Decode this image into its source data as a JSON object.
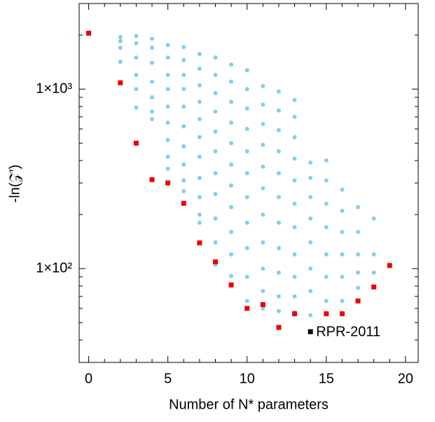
{
  "chart_data": {
    "type": "scatter",
    "xlabel": "Number of N* parameters",
    "ylabel": "-ln(𝒵′)",
    "xlim": [
      -0.6,
      20.8
    ],
    "xticks": [
      0,
      5,
      10,
      15,
      20
    ],
    "xminor_ticks": [
      1,
      2,
      3,
      4,
      6,
      7,
      8,
      9,
      11,
      12,
      13,
      14,
      16,
      17,
      18,
      19
    ],
    "ylim": [
      30,
      3000
    ],
    "log_y": true,
    "yticks": [
      {
        "value": 100,
        "label": "1×10²"
      },
      {
        "value": 1000,
        "label": "1×10³"
      }
    ],
    "yminor_ticks": [
      40,
      50,
      60,
      70,
      80,
      90,
      200,
      300,
      400,
      500,
      600,
      700,
      800,
      900,
      2000
    ],
    "series": [
      {
        "color": "#87ceeb",
        "marker": "circle",
        "x": [
          2,
          2,
          2,
          2,
          3,
          3,
          3,
          3,
          3,
          3,
          4,
          4,
          4,
          4,
          4,
          4,
          4,
          5,
          5,
          5,
          5,
          5,
          5,
          5,
          5,
          5,
          6,
          6,
          6,
          6,
          6,
          6,
          6,
          6,
          6,
          6,
          7,
          7,
          7,
          7,
          7,
          7,
          7,
          7,
          7,
          7,
          7,
          8,
          8,
          8,
          8,
          8,
          8,
          8,
          8,
          8,
          8,
          8,
          9,
          9,
          9,
          9,
          9,
          9,
          9,
          9,
          9,
          9,
          9,
          10,
          10,
          10,
          10,
          10,
          10,
          10,
          10,
          10,
          10,
          10,
          11,
          11,
          11,
          11,
          11,
          11,
          11,
          11,
          11,
          11,
          11,
          12,
          12,
          12,
          12,
          12,
          12,
          12,
          12,
          12,
          12,
          12,
          13,
          13,
          13,
          13,
          13,
          13,
          13,
          13,
          13,
          13,
          13,
          14,
          14,
          14,
          14,
          14,
          14,
          14,
          14,
          15,
          15,
          15,
          15,
          15,
          15,
          15,
          16,
          16,
          16,
          16,
          16,
          16,
          17,
          17,
          17,
          17,
          17,
          18,
          18,
          18
        ],
        "values": [
          1950,
          1850,
          1700,
          1420,
          1980,
          1800,
          1500,
          1200,
          1000,
          790,
          1910,
          1700,
          1400,
          1100,
          900,
          750,
          680,
          1760,
          1500,
          1200,
          1000,
          800,
          650,
          520,
          420,
          360,
          1715,
          1450,
          1200,
          1000,
          800,
          620,
          480,
          380,
          310,
          270,
          1570,
          1300,
          1050,
          850,
          680,
          540,
          420,
          320,
          250,
          200,
          180,
          1500,
          1200,
          950,
          750,
          580,
          450,
          340,
          260,
          190,
          140,
          105,
          1370,
          1100,
          850,
          650,
          500,
          380,
          290,
          220,
          160,
          120,
          91,
          1275,
          1000,
          780,
          600,
          450,
          340,
          250,
          180,
          130,
          90,
          66,
          1040,
          820,
          640,
          490,
          370,
          280,
          200,
          140,
          100,
          75,
          60,
          970,
          760,
          590,
          450,
          340,
          250,
          180,
          130,
          95,
          70,
          58,
          870,
          700,
          540,
          410,
          310,
          230,
          170,
          120,
          90,
          70,
          57,
          390,
          320,
          250,
          190,
          140,
          100,
          75,
          55,
          400,
          310,
          230,
          170,
          120,
          90,
          66,
          275,
          210,
          160,
          120,
          90,
          66,
          220,
          160,
          120,
          95,
          78,
          190,
          120,
          95
        ]
      },
      {
        "color": "#ee0000",
        "marker": "square",
        "x": [
          0,
          2,
          3,
          4,
          5,
          6,
          7,
          8,
          9,
          10,
          11,
          12,
          13,
          15,
          16,
          17,
          18,
          19
        ],
        "values": [
          2050,
          1085,
          500,
          313,
          300,
          231,
          139,
          109,
          81,
          60,
          63,
          47,
          56,
          56,
          56,
          66,
          79,
          104
        ]
      },
      {
        "name": "RPR-2011",
        "color": "#000000",
        "marker": "square",
        "x": [
          14
        ],
        "values": [
          44.5
        ]
      }
    ]
  }
}
